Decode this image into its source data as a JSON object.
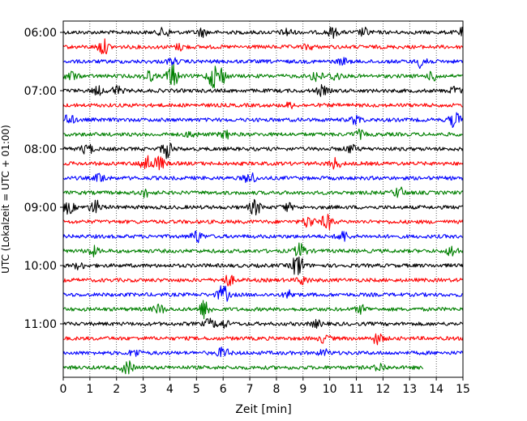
{
  "chart_data": {
    "type": "line",
    "title": "",
    "xlabel": "Zeit  [min]",
    "ylabel": "UTC (Lokalzeit = UTC + 01:00)",
    "xlim": [
      0,
      15
    ],
    "x_ticks": [
      "0",
      "1",
      "2",
      "3",
      "4",
      "5",
      "6",
      "7",
      "8",
      "9",
      "10",
      "11",
      "12",
      "13",
      "14",
      "15"
    ],
    "y_ticks": [
      "06:00",
      "07:00",
      "08:00",
      "09:00",
      "10:00",
      "11:00"
    ],
    "grid": "vertical dotted at each minute",
    "line_interval_minutes": 15,
    "color_cycle": [
      "#000000",
      "#ff0000",
      "#0000ff",
      "#008000"
    ],
    "traces": [
      {
        "start": "06:00",
        "color": "#000000",
        "events": [
          [
            3.8,
            0.6
          ],
          [
            5.2,
            0.5
          ],
          [
            8.4,
            0.5
          ],
          [
            10.1,
            0.6
          ],
          [
            11.3,
            0.5
          ],
          [
            15.0,
            0.5
          ]
        ]
      },
      {
        "start": "06:15",
        "color": "#ff0000",
        "events": [
          [
            1.5,
            1.0
          ],
          [
            4.4,
            0.4
          ],
          [
            9.2,
            0.3
          ]
        ]
      },
      {
        "start": "06:30",
        "color": "#0000ff",
        "events": [
          [
            4.1,
            0.4
          ],
          [
            10.5,
            0.4
          ],
          [
            13.5,
            1.0
          ]
        ]
      },
      {
        "start": "06:45",
        "color": "#008000",
        "events": [
          [
            0.3,
            0.6
          ],
          [
            3.2,
            0.7
          ],
          [
            4.1,
            1.6
          ],
          [
            5.6,
            1.3
          ],
          [
            5.9,
            1.2
          ],
          [
            9.5,
            0.8
          ],
          [
            10.2,
            0.6
          ],
          [
            13.9,
            0.6
          ]
        ]
      },
      {
        "start": "07:00",
        "color": "#000000",
        "events": [
          [
            1.3,
            0.5
          ],
          [
            2.0,
            0.6
          ],
          [
            9.7,
            0.6
          ],
          [
            14.7,
            0.5
          ]
        ]
      },
      {
        "start": "07:15",
        "color": "#ff0000",
        "events": [
          [
            8.5,
            0.3
          ]
        ]
      },
      {
        "start": "07:30",
        "color": "#0000ff",
        "events": [
          [
            0.2,
            0.7
          ],
          [
            11.0,
            0.6
          ],
          [
            14.7,
            1.0
          ]
        ]
      },
      {
        "start": "07:45",
        "color": "#008000",
        "events": [
          [
            4.8,
            0.4
          ],
          [
            6.1,
            0.5
          ],
          [
            11.1,
            0.5
          ]
        ]
      },
      {
        "start": "08:00",
        "color": "#000000",
        "events": [
          [
            0.9,
            0.7
          ],
          [
            3.9,
            1.1
          ],
          [
            10.8,
            0.5
          ]
        ]
      },
      {
        "start": "08:15",
        "color": "#ff0000",
        "events": [
          [
            3.1,
            1.1
          ],
          [
            3.6,
            0.9
          ],
          [
            10.2,
            0.7
          ]
        ]
      },
      {
        "start": "08:30",
        "color": "#0000ff",
        "events": [
          [
            1.4,
            0.6
          ],
          [
            7.0,
            0.8
          ]
        ]
      },
      {
        "start": "08:45",
        "color": "#008000",
        "events": [
          [
            3.1,
            0.5
          ],
          [
            12.6,
            0.7
          ]
        ]
      },
      {
        "start": "09:00",
        "color": "#000000",
        "events": [
          [
            0.2,
            0.8
          ],
          [
            1.2,
            0.9
          ],
          [
            7.2,
            1.0
          ],
          [
            8.4,
            0.5
          ]
        ]
      },
      {
        "start": "09:15",
        "color": "#ff0000",
        "events": [
          [
            9.2,
            0.8
          ],
          [
            9.9,
            1.0
          ]
        ]
      },
      {
        "start": "09:30",
        "color": "#0000ff",
        "events": [
          [
            5.0,
            0.8
          ],
          [
            10.5,
            0.7
          ]
        ]
      },
      {
        "start": "09:45",
        "color": "#008000",
        "events": [
          [
            1.1,
            0.6
          ],
          [
            8.9,
            1.0
          ],
          [
            14.6,
            0.7
          ]
        ]
      },
      {
        "start": "10:00",
        "color": "#000000",
        "events": [
          [
            8.8,
            1.6
          ],
          [
            0.6,
            0.4
          ]
        ]
      },
      {
        "start": "10:15",
        "color": "#ff0000",
        "events": [
          [
            6.2,
            0.7
          ],
          [
            9.0,
            0.5
          ]
        ]
      },
      {
        "start": "10:30",
        "color": "#0000ff",
        "events": [
          [
            6.0,
            1.2
          ],
          [
            8.5,
            0.5
          ]
        ]
      },
      {
        "start": "10:45",
        "color": "#008000",
        "events": [
          [
            3.6,
            0.6
          ],
          [
            5.3,
            1.2
          ],
          [
            11.2,
            0.5
          ]
        ]
      },
      {
        "start": "11:00",
        "color": "#000000",
        "events": [
          [
            5.5,
            0.6
          ],
          [
            6.0,
            0.5
          ],
          [
            9.5,
            0.4
          ]
        ]
      },
      {
        "start": "11:15",
        "color": "#ff0000",
        "events": [
          [
            11.8,
            0.7
          ],
          [
            9.8,
            0.5
          ]
        ]
      },
      {
        "start": "11:30",
        "color": "#0000ff",
        "events": [
          [
            2.7,
            0.5
          ],
          [
            6.0,
            0.7
          ],
          [
            9.8,
            0.4
          ]
        ]
      },
      {
        "start": "11:45",
        "color": "#008000",
        "events": [
          [
            2.4,
            0.9
          ],
          [
            11.9,
            0.5
          ]
        ],
        "end_minute": 13.5
      }
    ]
  }
}
